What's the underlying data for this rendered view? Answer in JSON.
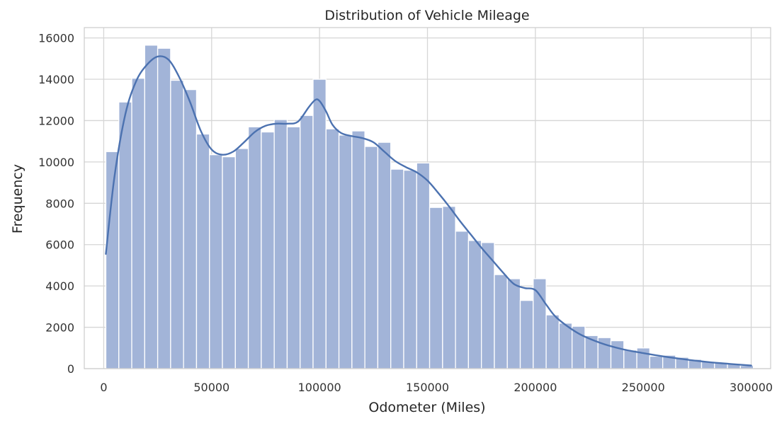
{
  "chart_data": {
    "type": "bar",
    "title": "Distribution of Vehicle Mileage",
    "xlabel": "Odometer (Miles)",
    "ylabel": "Frequency",
    "xlim": [
      -9000,
      309000
    ],
    "ylim": [
      0,
      16500
    ],
    "xticks": [
      0,
      50000,
      100000,
      150000,
      200000,
      250000,
      300000
    ],
    "yticks": [
      0,
      2000,
      4000,
      6000,
      8000,
      10000,
      12000,
      14000,
      16000
    ],
    "grid": true,
    "legend": "none",
    "bin_start": 1000,
    "bin_width": 6000,
    "values": [
      10500,
      12900,
      14050,
      15650,
      15500,
      13950,
      13500,
      11350,
      10350,
      10250,
      10650,
      11700,
      11450,
      12050,
      11700,
      12250,
      14000,
      11600,
      11300,
      11500,
      10750,
      10950,
      9650,
      9600,
      9950,
      7800,
      7850,
      6650,
      6200,
      6100,
      4550,
      4350,
      3300,
      4350,
      2600,
      2200,
      2050,
      1600,
      1500,
      1350,
      900,
      1000,
      600,
      650,
      550,
      450,
      350,
      300,
      250,
      150
    ],
    "kde": {
      "x": [
        1000,
        5000,
        10000,
        15000,
        20000,
        25000,
        30000,
        35000,
        40000,
        45000,
        50000,
        55000,
        60000,
        65000,
        70000,
        75000,
        80000,
        85000,
        90000,
        95000,
        98000,
        100000,
        103000,
        106000,
        110000,
        115000,
        120000,
        125000,
        130000,
        135000,
        140000,
        145000,
        150000,
        155000,
        160000,
        165000,
        170000,
        175000,
        180000,
        185000,
        190000,
        195000,
        200000,
        205000,
        210000,
        220000,
        230000,
        240000,
        250000,
        260000,
        270000,
        280000,
        290000,
        300000
      ],
      "y": [
        5550,
        9300,
        12300,
        13900,
        14700,
        15100,
        14950,
        14100,
        12900,
        11500,
        10600,
        10350,
        10500,
        10950,
        11450,
        11750,
        11850,
        11850,
        11950,
        12650,
        13000,
        12950,
        12450,
        11800,
        11400,
        11250,
        11150,
        10950,
        10500,
        10050,
        9750,
        9500,
        9100,
        8500,
        7850,
        7150,
        6500,
        5850,
        5250,
        4650,
        4100,
        3900,
        3800,
        3100,
        2450,
        1700,
        1250,
        950,
        750,
        580,
        440,
        320,
        230,
        150
      ]
    }
  }
}
